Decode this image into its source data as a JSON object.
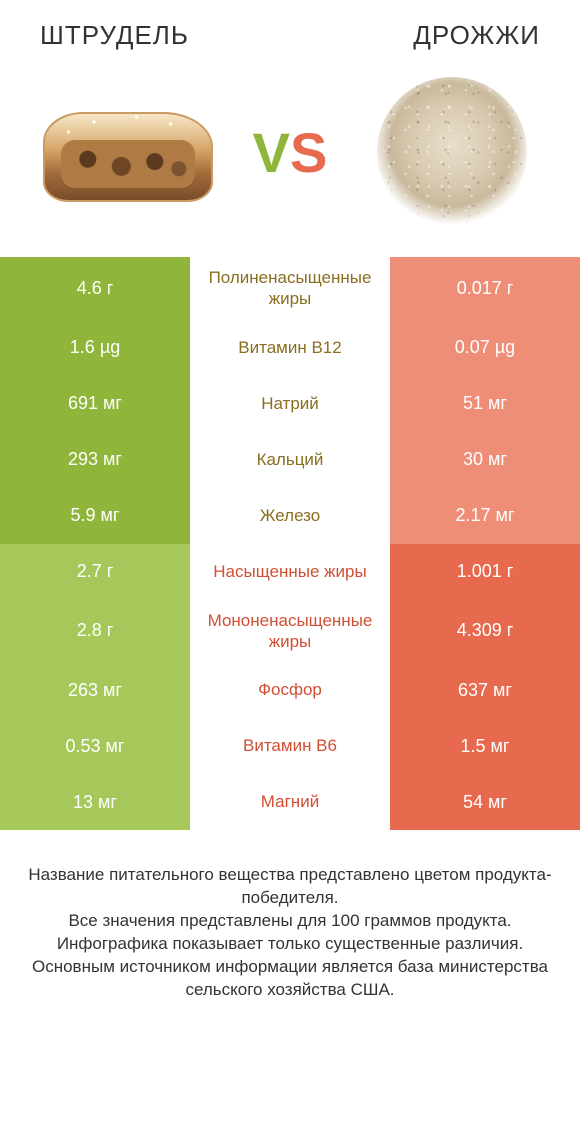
{
  "header": {
    "left_title": "ШТРУДЕЛЬ",
    "right_title": "ДРОЖЖИ",
    "vs_v": "V",
    "vs_s": "S"
  },
  "palette": {
    "left_winner": "#8fb53a",
    "left_loser": "#a6c85a",
    "right_winner": "#e86a4e",
    "right_loser": "#ef8e77",
    "text_left_winner": "#8a6d1f",
    "text_right_winner": "#d14f33",
    "background": "#ffffff"
  },
  "rows": [
    {
      "left": "4.6 г",
      "label": "Полиненасыщенные жиры",
      "right": "0.017 г",
      "winner": "left"
    },
    {
      "left": "1.6 µg",
      "label": "Витамин B12",
      "right": "0.07 µg",
      "winner": "left"
    },
    {
      "left": "691 мг",
      "label": "Натрий",
      "right": "51 мг",
      "winner": "left"
    },
    {
      "left": "293 мг",
      "label": "Кальций",
      "right": "30 мг",
      "winner": "left"
    },
    {
      "left": "5.9 мг",
      "label": "Железо",
      "right": "2.17 мг",
      "winner": "left"
    },
    {
      "left": "2.7 г",
      "label": "Насыщенные жиры",
      "right": "1.001 г",
      "winner": "right"
    },
    {
      "left": "2.8 г",
      "label": "Мононенасыщенные жиры",
      "right": "4.309 г",
      "winner": "right"
    },
    {
      "left": "263 мг",
      "label": "Фосфор",
      "right": "637 мг",
      "winner": "right"
    },
    {
      "left": "0.53 мг",
      "label": "Витамин B6",
      "right": "1.5 мг",
      "winner": "right"
    },
    {
      "left": "13 мг",
      "label": "Магний",
      "right": "54 мг",
      "winner": "right"
    }
  ],
  "footer": {
    "line1": "Название питательного вещества представлено цветом продукта-победителя.",
    "line2": "Все значения представлены для 100 граммов продукта.",
    "line3": "Инфографика показывает только существенные различия.",
    "line4": "Основным источником информации является база министерства сельского хозяйства США."
  }
}
